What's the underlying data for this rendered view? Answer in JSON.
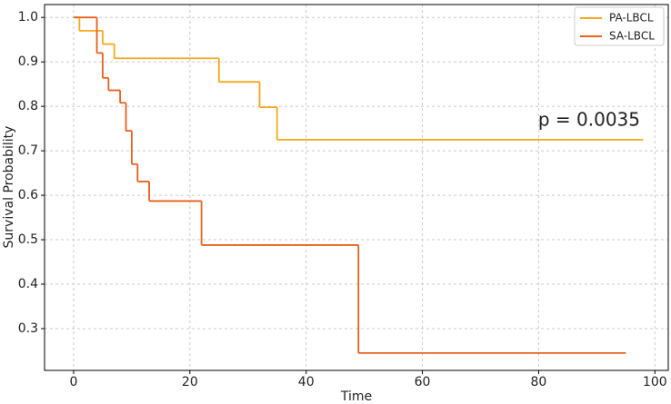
{
  "chart_data": {
    "type": "step",
    "x_label": "Time",
    "y_label": "Survival Probability",
    "annotation": "p = 0.0035",
    "xlim": [
      -5,
      102.3
    ],
    "ylim": [
      0.206,
      1.029
    ],
    "xticks": [
      0,
      20,
      40,
      60,
      80,
      100
    ],
    "yticks": [
      0.3,
      0.4,
      0.5,
      0.6,
      0.7,
      0.8,
      0.9,
      {
        "value": 1.0,
        "label": "1.0"
      }
    ],
    "grid": true,
    "legend": "upper right",
    "series": [
      {
        "name": "PA-LBCL",
        "color": "#f5a81c",
        "x": [
          0,
          1,
          5,
          7,
          25,
          32,
          35,
          98
        ],
        "values": [
          1.0,
          0.97,
          0.94,
          0.908,
          0.855,
          0.798,
          0.725,
          0.725
        ]
      },
      {
        "name": "SA-LBCL",
        "color": "#e8601c",
        "x": [
          0,
          4,
          5,
          6,
          8,
          9,
          10,
          11,
          13,
          22,
          49,
          95
        ],
        "values": [
          1.0,
          0.92,
          0.864,
          0.836,
          0.808,
          0.745,
          0.67,
          0.631,
          0.587,
          0.488,
          0.245,
          0.245
        ]
      }
    ]
  }
}
